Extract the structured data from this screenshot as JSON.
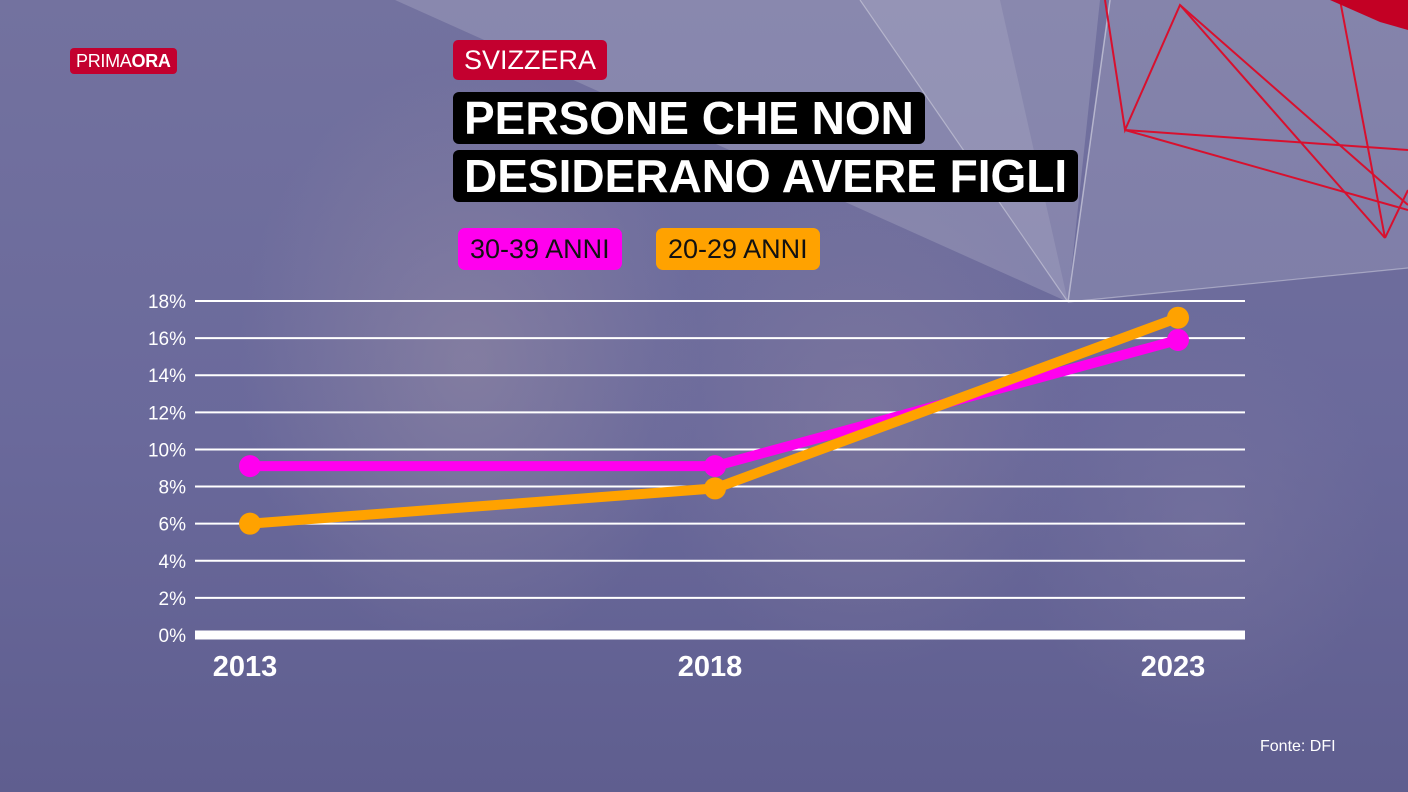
{
  "brand": {
    "logo_light": "PRIMA",
    "logo_bold": "ORA"
  },
  "region_label": "SVIZZERA",
  "title_lines": [
    "PERSONE CHE NON",
    "DESIDERANO AVERE FIGLI"
  ],
  "legend": [
    {
      "label": "30-39 ANNI",
      "color": "#ff00ee"
    },
    {
      "label": "20-29 ANNI",
      "color": "#ffa200"
    }
  ],
  "source": "Fonte: DFI",
  "colors": {
    "accent_red": "#c3002f",
    "background": "#6d6c9c",
    "grid": "#ffffff"
  },
  "chart_data": {
    "type": "line",
    "x": [
      "2013",
      "2018",
      "2023"
    ],
    "series": [
      {
        "name": "30-39 ANNI",
        "color": "#ff00ee",
        "values": [
          9.1,
          9.1,
          15.9
        ]
      },
      {
        "name": "20-29 ANNI",
        "color": "#ffa200",
        "values": [
          6.0,
          7.9,
          17.1
        ]
      }
    ],
    "yticks": [
      "0%",
      "2%",
      "4%",
      "6%",
      "8%",
      "10%",
      "12%",
      "14%",
      "16%",
      "18%"
    ],
    "ylim": [
      0,
      18
    ],
    "grid": true,
    "legend_position": "top-left"
  }
}
